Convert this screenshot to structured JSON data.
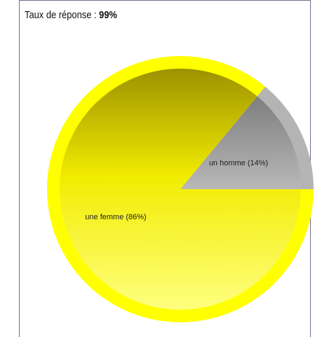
{
  "title": {
    "label": "Taux de réponse :",
    "value": "99%"
  },
  "chart_data": {
    "type": "pie",
    "slices": [
      {
        "label": "un homme (14%)",
        "value": 14,
        "color": "#b4b4b4"
      },
      {
        "label": "une femme (86%)",
        "value": 86,
        "color": "#ffff00"
      }
    ]
  }
}
